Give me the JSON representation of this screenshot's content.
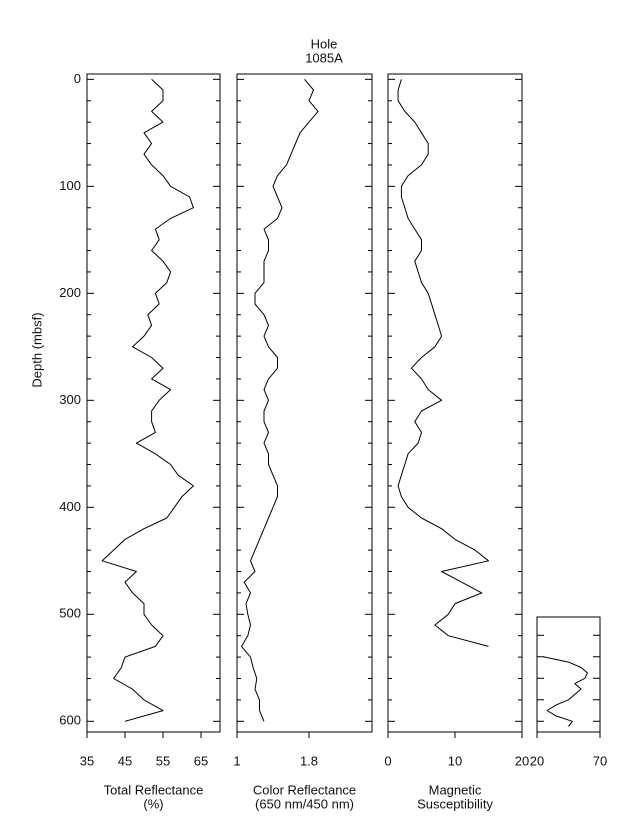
{
  "title_lines": [
    "Hole",
    "1085A"
  ],
  "chart_data": [
    {
      "type": "line",
      "y_label": "Depth (mbsf)",
      "x_label": [
        "Total  Reflectance",
        "(%)"
      ],
      "xlim": [
        35,
        70
      ],
      "xticks": [
        35,
        45,
        55,
        65
      ],
      "ylim": [
        -5,
        610
      ],
      "yticks": [
        0,
        100,
        200,
        300,
        400,
        500,
        600
      ],
      "yminor": [
        20,
        40,
        60,
        80,
        120,
        140,
        160,
        180,
        220,
        240,
        260,
        280,
        320,
        340,
        360,
        380,
        420,
        440,
        460,
        480,
        520,
        540,
        560,
        580
      ],
      "color": "#000000",
      "depth": [
        0,
        10,
        20,
        30,
        40,
        50,
        60,
        70,
        80,
        90,
        100,
        110,
        120,
        130,
        140,
        150,
        160,
        170,
        180,
        190,
        200,
        210,
        220,
        230,
        240,
        250,
        260,
        270,
        280,
        290,
        300,
        310,
        320,
        330,
        340,
        350,
        360,
        370,
        380,
        390,
        400,
        410,
        420,
        430,
        440,
        450,
        460,
        470,
        480,
        490,
        500,
        510,
        520,
        530,
        540,
        550,
        560,
        570,
        580,
        590,
        600
      ],
      "values": [
        52,
        55,
        55,
        52,
        55,
        50,
        52,
        50,
        52,
        55,
        57,
        62,
        63,
        57,
        53,
        54,
        52,
        55,
        57,
        56,
        53,
        54,
        51,
        52,
        50,
        47,
        52,
        55,
        52,
        57,
        54,
        52,
        52,
        53,
        48,
        53,
        57,
        59,
        63,
        60,
        58,
        56,
        50,
        45,
        42,
        39,
        48,
        45,
        47,
        50,
        50,
        52,
        55,
        53,
        45,
        44,
        42,
        47,
        50,
        55,
        45
      ]
    },
    {
      "type": "line",
      "x_label": [
        "Color Reflectance",
        "(650 nm/450 nm)"
      ],
      "xlim": [
        1,
        2.5
      ],
      "xticks": [
        1,
        1.8
      ],
      "ylim": [
        -5,
        610
      ],
      "ytick_marks": [
        0,
        100,
        200,
        300,
        400,
        500,
        600
      ],
      "yminor": [
        20,
        40,
        60,
        80,
        120,
        140,
        160,
        180,
        220,
        240,
        260,
        280,
        320,
        340,
        360,
        380,
        420,
        440,
        460,
        480,
        520,
        540,
        560,
        580
      ],
      "color": "#000000",
      "depth": [
        0,
        10,
        20,
        30,
        40,
        50,
        60,
        70,
        80,
        90,
        100,
        110,
        120,
        130,
        140,
        150,
        160,
        170,
        180,
        190,
        200,
        210,
        220,
        230,
        240,
        250,
        260,
        270,
        280,
        290,
        300,
        310,
        320,
        330,
        340,
        350,
        360,
        370,
        380,
        390,
        400,
        410,
        420,
        430,
        440,
        450,
        460,
        470,
        480,
        490,
        500,
        510,
        520,
        530,
        540,
        550,
        560,
        570,
        580,
        590,
        600
      ],
      "values": [
        1.75,
        1.85,
        1.8,
        1.9,
        1.8,
        1.7,
        1.65,
        1.6,
        1.55,
        1.45,
        1.4,
        1.45,
        1.5,
        1.45,
        1.3,
        1.35,
        1.35,
        1.3,
        1.3,
        1.3,
        1.2,
        1.2,
        1.3,
        1.35,
        1.3,
        1.35,
        1.45,
        1.45,
        1.35,
        1.3,
        1.35,
        1.3,
        1.3,
        1.35,
        1.3,
        1.35,
        1.35,
        1.4,
        1.45,
        1.45,
        1.4,
        1.35,
        1.3,
        1.25,
        1.2,
        1.15,
        1.2,
        1.08,
        1.15,
        1.1,
        1.12,
        1.15,
        1.12,
        1.05,
        1.15,
        1.18,
        1.22,
        1.2,
        1.25,
        1.25,
        1.3
      ]
    },
    {
      "type": "line",
      "x_label": [
        "Magnetic",
        "Susceptibility"
      ],
      "xlim": [
        0,
        20
      ],
      "xticks": [
        0,
        10,
        20
      ],
      "ylim": [
        -5,
        610
      ],
      "ytick_marks": [
        0,
        100,
        200,
        300,
        400,
        500,
        600
      ],
      "yminor": [
        20,
        40,
        60,
        80,
        120,
        140,
        160,
        180,
        220,
        240,
        260,
        280,
        320,
        340,
        360,
        380,
        420,
        440,
        460,
        480,
        520,
        540,
        560,
        580
      ],
      "color": "#000000",
      "depth": [
        0,
        10,
        20,
        30,
        40,
        50,
        60,
        70,
        80,
        90,
        100,
        110,
        120,
        130,
        140,
        150,
        160,
        170,
        180,
        190,
        200,
        210,
        220,
        230,
        240,
        250,
        260,
        270,
        280,
        290,
        300,
        310,
        320,
        330,
        340,
        350,
        360,
        370,
        380,
        390,
        400,
        410,
        420,
        430,
        440,
        450,
        460,
        470,
        480,
        490,
        500,
        510,
        520,
        530
      ],
      "values": [
        2,
        1.5,
        1.5,
        2.5,
        4,
        5,
        6,
        6,
        5,
        3,
        2,
        2,
        2.5,
        3,
        4,
        5,
        5,
        4,
        4.5,
        5,
        6,
        6.5,
        7,
        7.5,
        8,
        7,
        5,
        3.5,
        5,
        6,
        8,
        5,
        4,
        5,
        4.5,
        3,
        2.5,
        2,
        1.5,
        2,
        3,
        5,
        8,
        10,
        13,
        15,
        8,
        11,
        14,
        10,
        9,
        7,
        9,
        15
      ]
    },
    {
      "type": "line",
      "xlim": [
        20,
        70
      ],
      "xticks": [
        20,
        70
      ],
      "ylim": [
        503,
        610
      ],
      "ytick_marks": [
        520,
        540,
        560,
        580,
        600
      ],
      "color": "#000000",
      "depth": [
        540,
        545,
        550,
        555,
        560,
        565,
        570,
        575,
        580,
        585,
        590,
        595,
        600,
        605
      ],
      "values": [
        25,
        45,
        55,
        60,
        58,
        50,
        55,
        50,
        45,
        35,
        28,
        35,
        48,
        45
      ]
    }
  ]
}
